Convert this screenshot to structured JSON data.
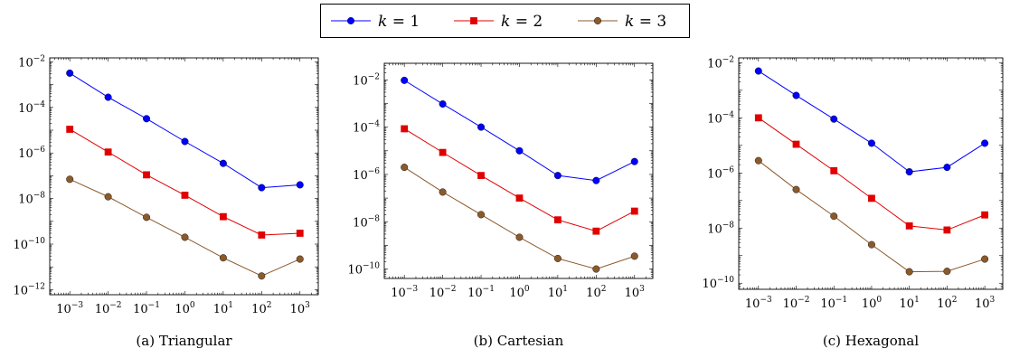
{
  "legend": {
    "entries": [
      {
        "var": "k",
        "eq": " = 1",
        "color": "#0000ff",
        "marker": "circle"
      },
      {
        "var": "k",
        "eq": " = 2",
        "color": "#e00000",
        "marker": "square"
      },
      {
        "var": "k",
        "eq": " = 3",
        "color": "#8b5a2b",
        "marker": "circle"
      }
    ]
  },
  "chart_data": [
    {
      "type": "line",
      "caption": "(a) Triangular",
      "x_scale": "log",
      "y_scale": "log",
      "x": [
        0.001,
        0.01,
        0.1,
        1,
        10,
        100,
        1000
      ],
      "xlim": [
        0.0003,
        3000
      ],
      "ylim": [
        6e-13,
        0.015
      ],
      "x_tick_exponents": [
        -3,
        -2,
        -1,
        0,
        1,
        2,
        3
      ],
      "y_tick_exponents": [
        -12,
        -10,
        -8,
        -6,
        -4,
        -2
      ],
      "series": [
        {
          "name": "k = 1",
          "values": [
            0.0032,
            0.00028,
            3.2e-05,
            3.2e-06,
            3.5e-07,
            3e-08,
            4e-08
          ]
        },
        {
          "name": "k = 2",
          "values": [
            1.1e-05,
            1.1e-06,
            1.1e-07,
            1.4e-08,
            1.6e-09,
            2.5e-10,
            3e-10
          ]
        },
        {
          "name": "k = 3",
          "values": [
            7e-08,
            1.2e-08,
            1.5e-09,
            2e-10,
            2.5e-11,
            4e-12,
            2.2e-11
          ]
        }
      ]
    },
    {
      "type": "line",
      "caption": "(b) Cartesian",
      "x_scale": "log",
      "y_scale": "log",
      "x": [
        0.001,
        0.01,
        0.1,
        1,
        10,
        100,
        1000
      ],
      "xlim": [
        0.0003,
        3000
      ],
      "ylim": [
        4e-11,
        0.05
      ],
      "x_tick_exponents": [
        -3,
        -2,
        -1,
        0,
        1,
        2,
        3
      ],
      "y_tick_exponents": [
        -10,
        -8,
        -6,
        -4,
        -2
      ],
      "series": [
        {
          "name": "k = 1",
          "values": [
            0.0095,
            0.00095,
            0.0001,
            1e-05,
            9e-07,
            5.5e-07,
            3.5e-06
          ]
        },
        {
          "name": "k = 2",
          "values": [
            8.5e-05,
            8.5e-06,
            9e-07,
            1e-07,
            1.2e-08,
            4e-09,
            2.8e-08
          ]
        },
        {
          "name": "k = 3",
          "values": [
            2e-06,
            1.8e-07,
            2e-08,
            2.2e-09,
            2.8e-10,
            1e-10,
            3.5e-10
          ]
        }
      ]
    },
    {
      "type": "line",
      "caption": "(c) Hexagonal",
      "x_scale": "log",
      "y_scale": "log",
      "x": [
        0.001,
        0.01,
        0.1,
        1,
        10,
        100,
        1000
      ],
      "xlim": [
        0.0003,
        3000
      ],
      "ylim": [
        6e-11,
        0.015
      ],
      "x_tick_exponents": [
        -3,
        -2,
        -1,
        0,
        1,
        2,
        3
      ],
      "y_tick_exponents": [
        -10,
        -8,
        -6,
        -4,
        -2
      ],
      "series": [
        {
          "name": "k = 1",
          "values": [
            0.005,
            0.00065,
            9e-05,
            1.2e-05,
            1.1e-06,
            1.6e-06,
            1.2e-05
          ]
        },
        {
          "name": "k = 2",
          "values": [
            0.0001,
            1.1e-05,
            1.2e-06,
            1.2e-07,
            1.2e-08,
            8.5e-09,
            3e-08
          ]
        },
        {
          "name": "k = 3",
          "values": [
            2.8e-06,
            2.5e-07,
            2.7e-08,
            2.5e-09,
            2.6e-10,
            2.7e-10,
            7.5e-10
          ]
        }
      ]
    }
  ]
}
